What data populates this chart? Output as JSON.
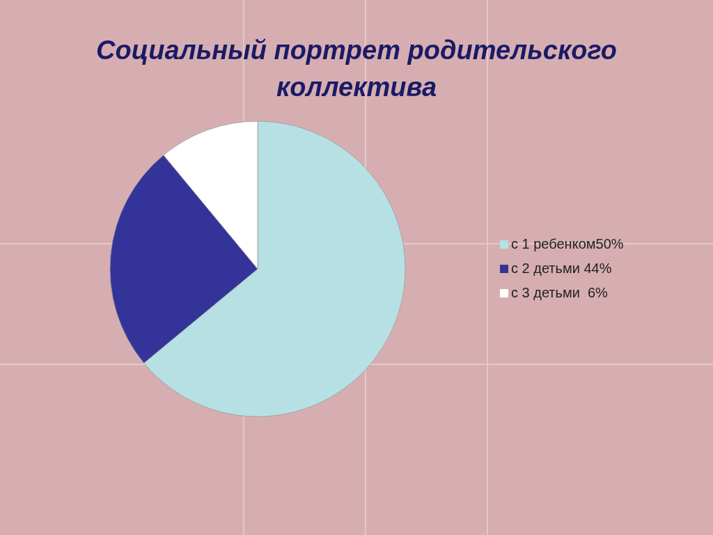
{
  "chart_data": {
    "type": "pie",
    "title": "Социальный портрет родительского коллектива",
    "categories": [
      "с 1 ребенком50%",
      "с 2 детьми 44%",
      "с 3 детьми  6%"
    ],
    "values": [
      64,
      25,
      11
    ],
    "colors": [
      "#b7e0e4",
      "#333399",
      "#ffffff"
    ],
    "legend": "right"
  }
}
